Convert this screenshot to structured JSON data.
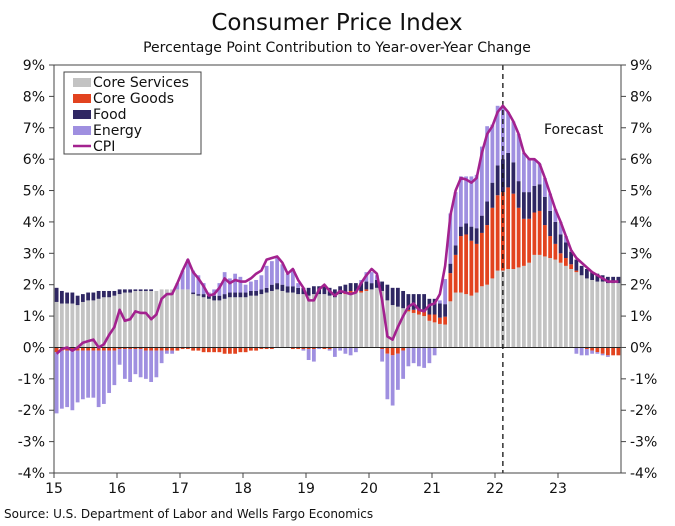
{
  "colors": {
    "core_services": "#c3c3c3",
    "core_goods": "#e2431f",
    "food": "#2f2763",
    "energy": "#9f8fe0",
    "cpi": "#a3228f"
  },
  "chart_data": {
    "type": "bar",
    "stacked": true,
    "title": "Consumer Price Index",
    "subtitle": "Percentage Point Contribution to Year-over-Year Change",
    "source": "Source: U.S. Department of Labor and Wells Fargo Economics",
    "annotation": "Forecast",
    "forecast_start": "2022-02",
    "frequency": "monthly",
    "x_start": "2015-01",
    "x_end": "2023-12",
    "x_tick_labels": [
      "15",
      "16",
      "17",
      "18",
      "19",
      "20",
      "21",
      "22",
      "23"
    ],
    "y_tick_labels": [
      "9%",
      "8%",
      "7%",
      "6%",
      "5%",
      "4%",
      "3%",
      "2%",
      "1%",
      "0%",
      "-1%",
      "-2%",
      "-3%",
      "-4%"
    ],
    "ylim": [
      -4,
      9
    ],
    "legend_position": "top-left",
    "grid": false,
    "series": [
      {
        "name": "Core Services",
        "key": "core_services",
        "values": [
          1.45,
          1.4,
          1.4,
          1.4,
          1.35,
          1.45,
          1.5,
          1.5,
          1.55,
          1.6,
          1.6,
          1.65,
          1.7,
          1.75,
          1.75,
          1.8,
          1.8,
          1.8,
          1.8,
          1.8,
          1.85,
          1.85,
          1.85,
          1.85,
          1.85,
          1.85,
          1.7,
          1.65,
          1.6,
          1.55,
          1.5,
          1.5,
          1.55,
          1.6,
          1.6,
          1.6,
          1.6,
          1.65,
          1.65,
          1.7,
          1.75,
          1.8,
          1.85,
          1.8,
          1.75,
          1.75,
          1.7,
          1.7,
          1.65,
          1.7,
          1.7,
          1.7,
          1.65,
          1.6,
          1.7,
          1.7,
          1.75,
          1.75,
          1.75,
          1.8,
          1.85,
          1.9,
          1.8,
          1.5,
          1.35,
          1.3,
          1.25,
          1.15,
          1.1,
          1.05,
          1.0,
          0.85,
          0.8,
          0.75,
          0.73,
          1.47,
          1.75,
          1.75,
          1.7,
          1.65,
          1.75,
          1.95,
          2.0,
          2.2,
          2.45,
          2.45,
          2.5,
          2.5,
          2.55,
          2.6,
          2.7,
          2.95,
          2.95,
          2.9,
          2.85,
          2.8,
          2.7,
          2.6,
          2.5,
          2.4,
          2.3,
          2.2,
          2.15,
          2.1,
          2.1,
          2.05,
          2.05,
          2.05
        ]
      },
      {
        "name": "Core Goods",
        "key": "core_goods",
        "values": [
          -0.15,
          -0.1,
          -0.1,
          -0.1,
          -0.1,
          -0.1,
          -0.1,
          -0.1,
          -0.1,
          -0.1,
          -0.1,
          -0.1,
          -0.05,
          -0.05,
          -0.05,
          -0.05,
          -0.05,
          -0.1,
          -0.1,
          -0.1,
          -0.1,
          -0.1,
          -0.1,
          -0.1,
          -0.05,
          -0.05,
          -0.1,
          -0.1,
          -0.15,
          -0.15,
          -0.15,
          -0.15,
          -0.2,
          -0.2,
          -0.2,
          -0.15,
          -0.15,
          -0.1,
          -0.1,
          -0.05,
          -0.05,
          -0.05,
          0,
          0,
          0,
          -0.05,
          -0.05,
          -0.05,
          -0.05,
          -0.05,
          0,
          -0.05,
          -0.05,
          0,
          0,
          0.05,
          0.05,
          0.05,
          0.05,
          0.05,
          0,
          0,
          -0.05,
          -0.2,
          -0.25,
          -0.2,
          -0.1,
          0.05,
          0.1,
          0.15,
          0.2,
          0.2,
          0.25,
          0.2,
          0.25,
          0.9,
          1.2,
          1.8,
          1.9,
          1.75,
          1.55,
          1.7,
          1.9,
          2.25,
          2.4,
          2.5,
          2.6,
          2.4,
          1.9,
          1.5,
          1.4,
          1.35,
          1.4,
          1.0,
          0.7,
          0.5,
          0.3,
          0.25,
          0.15,
          0.05,
          0,
          -0.05,
          -0.1,
          -0.15,
          -0.2,
          -0.25,
          -0.25,
          -0.25
        ]
      },
      {
        "name": "Food",
        "key": "food",
        "values": [
          0.45,
          0.4,
          0.35,
          0.35,
          0.3,
          0.25,
          0.25,
          0.25,
          0.25,
          0.2,
          0.2,
          0.15,
          0.15,
          0.1,
          0.1,
          0.05,
          0.05,
          0.05,
          0.05,
          0,
          0,
          0,
          0,
          0,
          0,
          0,
          0.05,
          0.05,
          0.1,
          0.1,
          0.15,
          0.15,
          0.15,
          0.15,
          0.15,
          0.15,
          0.15,
          0.15,
          0.15,
          0.15,
          0.15,
          0.2,
          0.2,
          0.2,
          0.2,
          0.2,
          0.2,
          0.2,
          0.25,
          0.25,
          0.25,
          0.25,
          0.25,
          0.25,
          0.25,
          0.25,
          0.25,
          0.25,
          0.25,
          0.25,
          0.2,
          0.25,
          0.3,
          0.5,
          0.55,
          0.6,
          0.55,
          0.5,
          0.5,
          0.5,
          0.5,
          0.5,
          0.5,
          0.45,
          0.4,
          0.3,
          0.3,
          0.3,
          0.35,
          0.45,
          0.5,
          0.55,
          0.75,
          0.8,
          0.95,
          1.05,
          1.1,
          1.0,
          0.85,
          0.85,
          0.85,
          0.85,
          0.85,
          0.9,
          0.8,
          0.7,
          0.6,
          0.5,
          0.4,
          0.35,
          0.3,
          0.3,
          0.25,
          0.25,
          0.2,
          0.2,
          0.2,
          0.2
        ]
      },
      {
        "name": "Energy",
        "key": "energy",
        "values": [
          -1.95,
          -1.85,
          -1.8,
          -1.9,
          -1.65,
          -1.55,
          -1.5,
          -1.5,
          -1.8,
          -1.7,
          -1.35,
          -1.1,
          -0.5,
          -0.95,
          -1.05,
          -0.8,
          -0.9,
          -0.9,
          -1.0,
          -0.85,
          -0.4,
          -0.1,
          -0.1,
          0.2,
          0.6,
          0.95,
          0.7,
          0.6,
          0.35,
          0.1,
          0.2,
          0.4,
          0.7,
          0.45,
          0.6,
          0.5,
          0.25,
          0.3,
          0.35,
          0.45,
          0.7,
          0.75,
          0.8,
          0.65,
          0.4,
          0.55,
          0.15,
          -0.05,
          -0.35,
          -0.4,
          -0.05,
          0.05,
          -0.05,
          -0.3,
          -0.1,
          -0.2,
          -0.25,
          -0.15,
          0.1,
          0.3,
          0.35,
          0.15,
          -0.4,
          -1.45,
          -1.6,
          -1.15,
          -0.9,
          -0.6,
          -0.5,
          -0.6,
          -0.65,
          -0.5,
          -0.25,
          0.1,
          0.8,
          1.6,
          1.7,
          1.6,
          1.5,
          1.6,
          1.7,
          2.2,
          2.4,
          1.85,
          1.9,
          1.7,
          1.3,
          1.3,
          1.5,
          1.25,
          1.05,
          0.85,
          0.65,
          0.6,
          0.55,
          0.4,
          0.4,
          0.2,
          0.05,
          -0.2,
          -0.25,
          -0.2,
          -0.1,
          -0.05,
          -0.05,
          -0.05,
          0,
          0
        ]
      },
      {
        "name": "CPI",
        "key": "cpi",
        "type": "line",
        "values": [
          -0.2,
          -0.05,
          0,
          -0.1,
          0,
          0.15,
          0.2,
          0.25,
          0,
          0.1,
          0.4,
          0.65,
          1.2,
          0.85,
          0.9,
          1.15,
          1.1,
          1.1,
          0.9,
          1.05,
          1.55,
          1.7,
          1.7,
          2.05,
          2.45,
          2.8,
          2.4,
          2.2,
          1.95,
          1.65,
          1.7,
          1.9,
          2.2,
          2.05,
          2.15,
          2.1,
          2.1,
          2.2,
          2.35,
          2.45,
          2.8,
          2.85,
          2.9,
          2.7,
          2.35,
          2.5,
          2.15,
          1.9,
          1.5,
          1.5,
          1.85,
          2.0,
          1.8,
          1.65,
          1.8,
          1.75,
          1.7,
          1.75,
          2.05,
          2.3,
          2.5,
          2.35,
          1.5,
          0.35,
          0.25,
          0.65,
          1.0,
          1.3,
          1.4,
          1.2,
          1.15,
          1.35,
          1.4,
          1.7,
          2.6,
          4.2,
          5.0,
          5.4,
          5.35,
          5.25,
          5.4,
          6.2,
          6.8,
          7.05,
          7.5,
          7.7,
          7.5,
          7.2,
          6.8,
          6.2,
          6.0,
          6.0,
          5.85,
          5.4,
          4.9,
          4.4,
          4.0,
          3.55,
          3.1,
          2.85,
          2.7,
          2.55,
          2.4,
          2.3,
          2.2,
          2.1,
          2.1,
          2.1
        ]
      }
    ]
  }
}
